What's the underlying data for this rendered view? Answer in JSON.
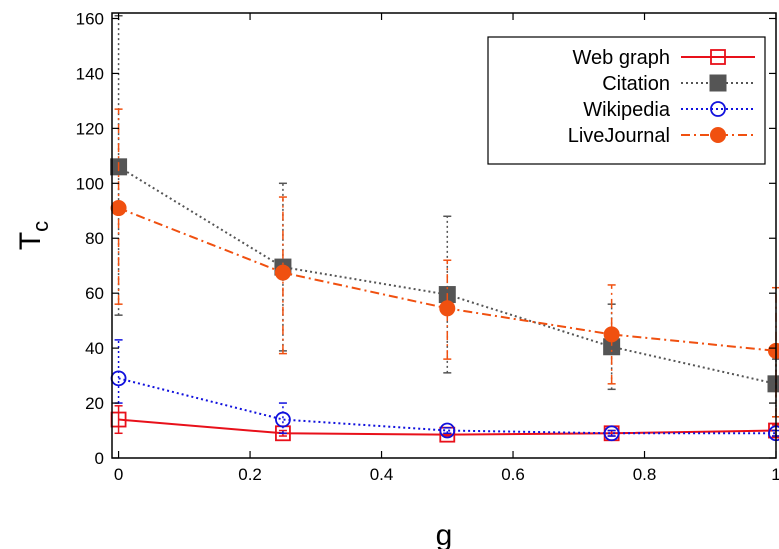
{
  "chart_data": {
    "type": "line",
    "xlabel": "g",
    "ylabel_main": "T",
    "ylabel_sub": "c",
    "xlim": [
      -0.01,
      1.0
    ],
    "ylim": [
      0,
      162
    ],
    "xticks": [
      0,
      0.2,
      0.4,
      0.6,
      0.8,
      1
    ],
    "xtick_labels": [
      "0",
      "0.2",
      "0.4",
      "0.6",
      "0.8",
      "1"
    ],
    "yticks": [
      0,
      20,
      40,
      60,
      80,
      100,
      120,
      140,
      160
    ],
    "ytick_labels": [
      "0",
      "20",
      "40",
      "60",
      "80",
      "100",
      "120",
      "140",
      "160"
    ],
    "grid": false,
    "legend_position": "top-right",
    "x": [
      0,
      0.25,
      0.5,
      0.75,
      1.0
    ],
    "series": [
      {
        "name": "Web graph",
        "values": [
          14,
          9,
          8.5,
          9,
          10
        ],
        "err_low": [
          9,
          8,
          8,
          8,
          8
        ],
        "err_high": [
          19,
          10,
          9,
          10,
          12
        ],
        "color": "#e8101a",
        "dash": "solid",
        "marker": "open-square"
      },
      {
        "name": "Citation",
        "values": [
          106,
          69.5,
          59.5,
          40.5,
          27
        ],
        "err_low": [
          52,
          39,
          31,
          25,
          15
        ],
        "err_high": [
          161,
          100,
          88,
          56,
          36
        ],
        "color": "#555555",
        "dash": "dotted",
        "marker": "filled-square"
      },
      {
        "name": "Wikipedia",
        "values": [
          29,
          14,
          10,
          9,
          9
        ],
        "err_low": [
          20,
          9,
          9,
          8,
          8
        ],
        "err_high": [
          43,
          20,
          11,
          10,
          10
        ],
        "color": "#1010dd",
        "dash": "dotted",
        "marker": "open-circle"
      },
      {
        "name": "LiveJournal",
        "values": [
          91,
          67.5,
          54.5,
          45,
          39
        ],
        "err_low": [
          56,
          38,
          36,
          27,
          15
        ],
        "err_high": [
          127,
          95,
          72,
          63,
          62
        ],
        "color": "#f05010",
        "dash": "dash-dot",
        "marker": "filled-circle"
      }
    ]
  }
}
